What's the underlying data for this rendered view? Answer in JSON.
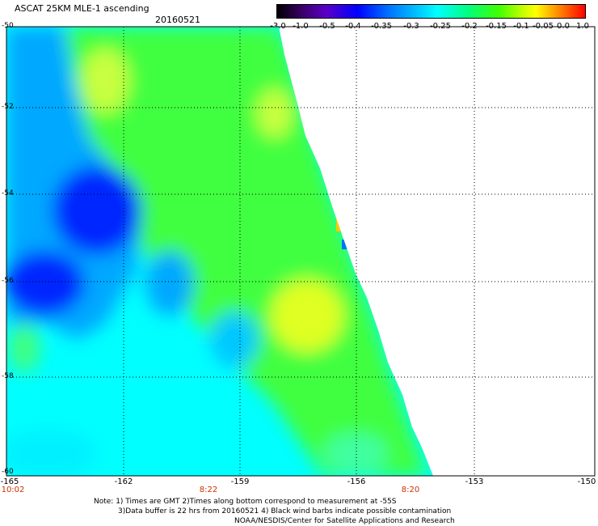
{
  "header": {
    "title": "ASCAT 25KM MLE-1 ascending",
    "date": "20160521"
  },
  "colorbar": {
    "labels": [
      "-3.0",
      "-1.0",
      "-0.5",
      "-0.4",
      "-0.35",
      "-0.3",
      "-0.25",
      "-0.2",
      "-0.15",
      "-0.1",
      "-0.05",
      "0.0",
      "1.0"
    ]
  },
  "axes": {
    "lat_labels": [
      "-50",
      "-52",
      "-54",
      "-56",
      "-58",
      "-60"
    ],
    "lon_labels": [
      "-165",
      "-162",
      "-159",
      "-156",
      "-153",
      "-150"
    ],
    "time_labels": [
      "10:02",
      "8:22",
      "8:20"
    ]
  },
  "notes": {
    "line1": "Note: 1) Times are GMT 2)Times along bottom correspond to measurement at -55S",
    "line2": "3)Data buffer is 22 hrs from 20160521 4) Black wind barbs indicate possible contamination",
    "line3": "NOAA/NESDIS/Center for Satellite Applications and Research"
  },
  "colors": {
    "low": "#0000ff",
    "mid": "#00ffff",
    "high": "#40ff00",
    "peak": "#ffff00"
  }
}
